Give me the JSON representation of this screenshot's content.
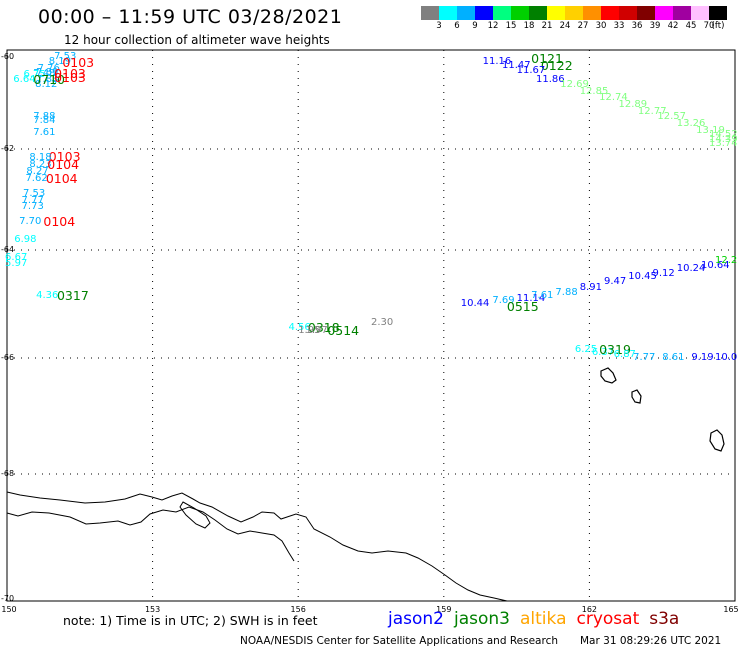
{
  "title": "00:00 – 11:59 UTC 03/28/2021",
  "subtitle": "12 hour collection of altimeter wave heights",
  "colorbar": {
    "colors": [
      "#808080",
      "#00ffff",
      "#00b0ff",
      "#0000ff",
      "#00ff80",
      "#00d000",
      "#008000",
      "#ffff00",
      "#ffd000",
      "#ff9000",
      "#ff0000",
      "#d00000",
      "#800000",
      "#ff00ff",
      "#a000a0",
      "#ffc0ff",
      "#000000"
    ],
    "labels": [
      "3",
      "6",
      "9",
      "12",
      "15",
      "18",
      "21",
      "24",
      "27",
      "30",
      "33",
      "36",
      "39",
      "42",
      "45",
      "70",
      "(ft)"
    ]
  },
  "axes": {
    "lat_labels": [
      {
        "text": "-60",
        "v": -60
      },
      {
        "text": "-62",
        "v": -62
      },
      {
        "text": "-64",
        "v": -64
      },
      {
        "text": "-66",
        "v": -66
      },
      {
        "text": "-68",
        "v": -68
      },
      {
        "text": "-70",
        "v": -70
      }
    ],
    "lon_labels": [
      {
        "text": "150",
        "v": 150
      },
      {
        "text": "153",
        "v": 153
      },
      {
        "text": "156",
        "v": 156
      },
      {
        "text": "159",
        "v": 159
      },
      {
        "text": "162",
        "v": 162
      },
      {
        "text": "165",
        "v": 165
      }
    ]
  },
  "note": "note:  1) Time is in UTC;  2) SWH is in feet",
  "legend": [
    {
      "name": "jason2",
      "color": "#0000ff"
    },
    {
      "name": "jason3",
      "color": "#008000"
    },
    {
      "name": "altika",
      "color": "#ffa500"
    },
    {
      "name": "cryosat",
      "color": "#ff0000"
    },
    {
      "name": "s3a",
      "color": "#800000"
    }
  ],
  "footer_left": "NOAA/NESDIS Center for Satellite Applications and Research",
  "footer_right": "Mar 31 08:29:26 UTC 2021",
  "observations": [
    {
      "t": "7.53",
      "c": "#00b0ff",
      "lon": 150.97,
      "lat": -59.95
    },
    {
      "t": "8.19",
      "c": "#00b0ff",
      "lon": 150.86,
      "lat": -60.1
    },
    {
      "t": "7.76",
      "c": "#00b0ff",
      "lon": 150.63,
      "lat": -60.27
    },
    {
      "t": "7.48",
      "c": "#00b0ff",
      "lon": 150.54,
      "lat": -60.37
    },
    {
      "t": "6.75",
      "c": "#00ffff",
      "lon": 150.34,
      "lat": -60.4
    },
    {
      "t": "6.64",
      "c": "#00ffff",
      "lon": 150.13,
      "lat": -60.5
    },
    {
      "t": "7.89",
      "c": "#00b0ff",
      "lon": 150.6,
      "lat": -60.35
    },
    {
      "t": "8.12",
      "c": "#00b0ff",
      "lon": 150.58,
      "lat": -60.6
    },
    {
      "t": "7.83",
      "c": "#00b0ff",
      "lon": 150.6,
      "lat": -60.5
    },
    {
      "t": "0710",
      "c": "#008000",
      "lon": 150.54,
      "lat": -60.5,
      "big": true
    },
    {
      "t": "0103",
      "c": "#ff0000",
      "lon": 151.14,
      "lat": -60.12,
      "big": true
    },
    {
      "t": "0103",
      "c": "#ff0000",
      "lon": 150.97,
      "lat": -60.37,
      "big": true
    },
    {
      "t": "0103",
      "c": "#ff0000",
      "lon": 150.97,
      "lat": -60.45,
      "big": true
    },
    {
      "t": "7.88",
      "c": "#00b0ff",
      "lon": 150.54,
      "lat": -61.3
    },
    {
      "t": "7.84",
      "c": "#00b0ff",
      "lon": 150.54,
      "lat": -61.4
    },
    {
      "t": "7.61",
      "c": "#00b0ff",
      "lon": 150.54,
      "lat": -61.65
    },
    {
      "t": "0103",
      "c": "#ff0000",
      "lon": 150.86,
      "lat": -62.15,
      "big": true
    },
    {
      "t": "8.18",
      "c": "#00b0ff",
      "lon": 150.46,
      "lat": -62.18
    },
    {
      "t": "8.23",
      "c": "#00b0ff",
      "lon": 150.46,
      "lat": -62.32
    },
    {
      "t": "0104",
      "c": "#ff0000",
      "lon": 150.83,
      "lat": -62.32,
      "big": true
    },
    {
      "t": "8.27",
      "c": "#00b0ff",
      "lon": 150.4,
      "lat": -62.45
    },
    {
      "t": "7.62",
      "c": "#00b0ff",
      "lon": 150.38,
      "lat": -62.6
    },
    {
      "t": "0104",
      "c": "#ff0000",
      "lon": 150.8,
      "lat": -62.6,
      "big": true
    },
    {
      "t": "7.53",
      "c": "#00b0ff",
      "lon": 150.33,
      "lat": -62.9
    },
    {
      "t": "7.77",
      "c": "#00b0ff",
      "lon": 150.3,
      "lat": -63.02
    },
    {
      "t": "7.73",
      "c": "#00b0ff",
      "lon": 150.3,
      "lat": -63.15
    },
    {
      "t": "7.70",
      "c": "#00b0ff",
      "lon": 150.25,
      "lat": -63.45
    },
    {
      "t": "0104",
      "c": "#ff0000",
      "lon": 150.75,
      "lat": -63.45,
      "big": true
    },
    {
      "t": "6.98",
      "c": "#00ffff",
      "lon": 150.15,
      "lat": -63.8
    },
    {
      "t": "6.67",
      "c": "#00ffff",
      "lon": 149.96,
      "lat": -64.15
    },
    {
      "t": "5.97",
      "c": "#00ffff",
      "lon": 149.96,
      "lat": -64.25
    },
    {
      "t": "4.36",
      "c": "#00ffff",
      "lon": 150.6,
      "lat": -64.85
    },
    {
      "t": "0317",
      "c": "#008000",
      "lon": 151.03,
      "lat": -64.85,
      "big": true
    },
    {
      "t": "4.56",
      "c": "#00ffff",
      "lon": 155.8,
      "lat": -65.45
    },
    {
      "t": "0318",
      "c": "#008000",
      "lon": 156.2,
      "lat": -65.45,
      "big": true
    },
    {
      "t": "1.95",
      "c": "#808080",
      "lon": 156.0,
      "lat": -65.5
    },
    {
      "t": "1.97",
      "c": "#808080",
      "lon": 156.15,
      "lat": -65.5
    },
    {
      "t": "0514",
      "c": "#008000",
      "lon": 156.6,
      "lat": -65.5,
      "big": true
    },
    {
      "t": "2.30",
      "c": "#808080",
      "lon": 157.5,
      "lat": -65.35
    },
    {
      "t": "11.16",
      "c": "#0000ff",
      "lon": 159.8,
      "lat": -60.1
    },
    {
      "t": "0121",
      "c": "#008000",
      "lon": 160.8,
      "lat": -60.05,
      "big": true
    },
    {
      "t": "11.47",
      "c": "#0000ff",
      "lon": 160.2,
      "lat": -60.2
    },
    {
      "t": "0122",
      "c": "#008000",
      "lon": 161.0,
      "lat": -60.2,
      "big": true
    },
    {
      "t": "11.67",
      "c": "#0000ff",
      "lon": 160.5,
      "lat": -60.3
    },
    {
      "t": "11.86",
      "c": "#0000ff",
      "lon": 160.9,
      "lat": -60.5
    },
    {
      "t": "12.69",
      "c": "#80ff80",
      "lon": 161.4,
      "lat": -60.6
    },
    {
      "t": "12.85",
      "c": "#80ff80",
      "lon": 161.8,
      "lat": -60.75
    },
    {
      "t": "12.74",
      "c": "#80ff80",
      "lon": 162.2,
      "lat": -60.9
    },
    {
      "t": "12.89",
      "c": "#80ff80",
      "lon": 162.6,
      "lat": -61.05
    },
    {
      "t": "12.77",
      "c": "#80ff80",
      "lon": 163.0,
      "lat": -61.2
    },
    {
      "t": "12.57",
      "c": "#80ff80",
      "lon": 163.4,
      "lat": -61.3
    },
    {
      "t": "13.26",
      "c": "#80ff80",
      "lon": 163.8,
      "lat": -61.45
    },
    {
      "t": "13.19",
      "c": "#80ff80",
      "lon": 164.2,
      "lat": -61.6
    },
    {
      "t": "14.52",
      "c": "#80ff80",
      "lon": 164.5,
      "lat": -61.7
    },
    {
      "t": "14.39",
      "c": "#80ff80",
      "lon": 164.8,
      "lat": -61.8
    },
    {
      "t": "13.74",
      "c": "#80ff80",
      "lon": 165.0,
      "lat": -61.9
    },
    {
      "t": "10.44",
      "c": "#0000ff",
      "lon": 159.35,
      "lat": -65.0
    },
    {
      "t": "7.69",
      "c": "#00b0ff",
      "lon": 160.0,
      "lat": -64.95
    },
    {
      "t": "0515",
      "c": "#008000",
      "lon": 160.3,
      "lat": -65.05,
      "big": true
    },
    {
      "t": "11.14",
      "c": "#0000ff",
      "lon": 160.5,
      "lat": -64.9
    },
    {
      "t": "7.61",
      "c": "#00b0ff",
      "lon": 160.8,
      "lat": -64.85
    },
    {
      "t": "7.88",
      "c": "#00b0ff",
      "lon": 161.3,
      "lat": -64.8
    },
    {
      "t": "8.91",
      "c": "#0000ff",
      "lon": 161.8,
      "lat": -64.7
    },
    {
      "t": "9.47",
      "c": "#0000ff",
      "lon": 162.3,
      "lat": -64.6
    },
    {
      "t": "10.45",
      "c": "#0000ff",
      "lon": 162.8,
      "lat": -64.5
    },
    {
      "t": "9.12",
      "c": "#0000ff",
      "lon": 163.3,
      "lat": -64.45
    },
    {
      "t": "10.24",
      "c": "#0000ff",
      "lon": 163.8,
      "lat": -64.35
    },
    {
      "t": "10.64",
      "c": "#0000ff",
      "lon": 164.3,
      "lat": -64.3
    },
    {
      "t": "12.2",
      "c": "#00d000",
      "lon": 164.7,
      "lat": -64.2
    },
    {
      "t": "6.25",
      "c": "#00ffff",
      "lon": 161.7,
      "lat": -65.85
    },
    {
      "t": "6.37",
      "c": "#00ffff",
      "lon": 162.05,
      "lat": -65.9
    },
    {
      "t": "0319",
      "c": "#008000",
      "lon": 162.2,
      "lat": -65.85,
      "big": true
    },
    {
      "t": "6.87",
      "c": "#00ffff",
      "lon": 162.5,
      "lat": -65.95
    },
    {
      "t": "7.77",
      "c": "#00b0ff",
      "lon": 162.9,
      "lat": -66.0
    },
    {
      "t": "8.61",
      "c": "#00b0ff",
      "lon": 163.5,
      "lat": -66.0
    },
    {
      "t": "9.19",
      "c": "#0000ff",
      "lon": 164.1,
      "lat": -66.0
    },
    {
      "t": "10.0",
      "c": "#0000ff",
      "lon": 164.7,
      "lat": -66.0
    }
  ]
}
